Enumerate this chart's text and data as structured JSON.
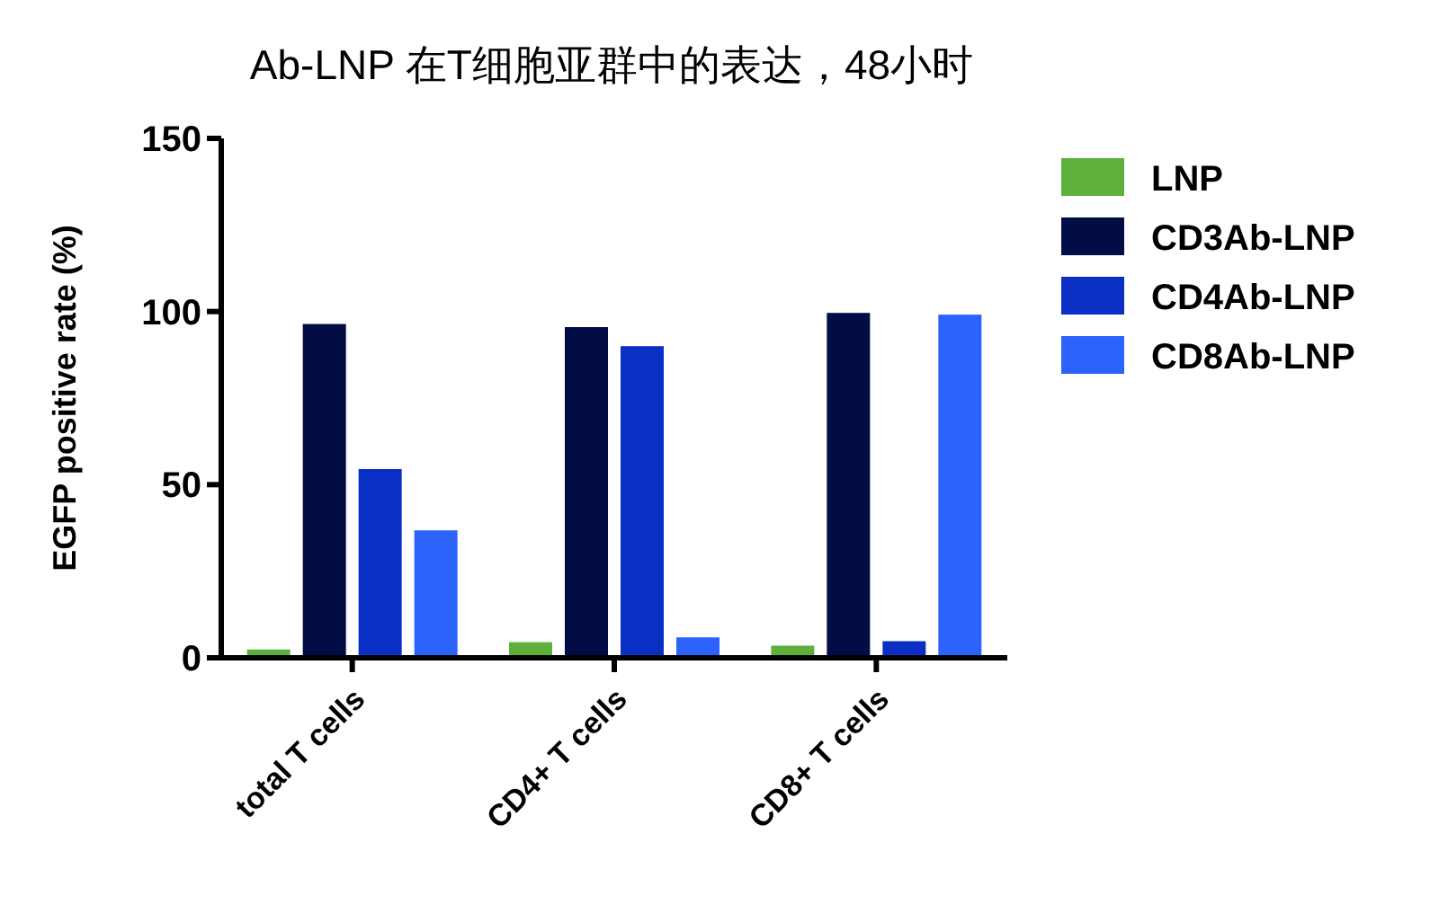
{
  "chart_data": {
    "type": "bar",
    "title": "Ab-LNP 在T细胞亚群中的表达，48小时",
    "ylabel": "EGFP positive rate (%)",
    "categories": [
      "total T cells",
      "CD4+ T cells",
      "CD8+ T cells"
    ],
    "series": [
      {
        "name": "LNP",
        "color": "#5db03c",
        "values": [
          2.4,
          4.5,
          3.5
        ]
      },
      {
        "name": "CD3Ab-LNP",
        "color": "#020c45",
        "values": [
          96.4,
          95.5,
          99.6
        ]
      },
      {
        "name": "CD4Ab-LNP",
        "color": "#0a2fc4",
        "values": [
          54.5,
          90,
          4.8
        ]
      },
      {
        "name": "CD8Ab-LNP",
        "color": "#2b63fb",
        "values": [
          36.8,
          5.9,
          99.1
        ]
      }
    ],
    "ylim": [
      0,
      150
    ],
    "yticks": [
      0,
      50,
      100,
      150
    ],
    "grid": false,
    "legend": "right"
  }
}
